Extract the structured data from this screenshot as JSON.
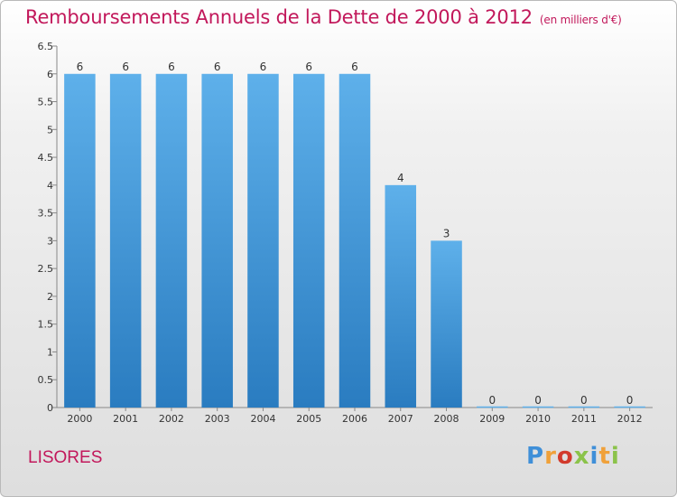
{
  "header": {
    "title": "Remboursements Annuels de la Dette de 2000 à 2012",
    "subtitle": "(en milliers d'€)"
  },
  "footer": {
    "commune": "LISORES",
    "logo_text": "Proxiti"
  },
  "colors": {
    "title": "#c2185b",
    "bar_top": "#5eb0ea",
    "bar_bottom": "#2a7cc0",
    "logo_letters": [
      "#3f8fd8",
      "#f0a13a",
      "#d23a2c",
      "#8bc34a",
      "#3f8fd8",
      "#f0a13a",
      "#8bc34a"
    ]
  },
  "chart_data": {
    "type": "bar",
    "title": "Remboursements Annuels de la Dette de 2000 à 2012",
    "subtitle": "(en milliers d'€)",
    "xlabel": "",
    "ylabel": "",
    "categories": [
      "2000",
      "2001",
      "2002",
      "2003",
      "2004",
      "2005",
      "2006",
      "2007",
      "2008",
      "2009",
      "2010",
      "2011",
      "2012"
    ],
    "values": [
      6,
      6,
      6,
      6,
      6,
      6,
      6,
      4,
      3,
      0,
      0,
      0,
      0
    ],
    "data_labels": [
      "6",
      "6",
      "6",
      "6",
      "6",
      "6",
      "6",
      "4",
      "3",
      "0",
      "0",
      "0",
      "0"
    ],
    "ylim": [
      0,
      6.5
    ],
    "yticks": [
      0,
      0.5,
      1,
      1.5,
      2,
      2.5,
      3,
      3.5,
      4,
      4.5,
      5,
      5.5,
      6,
      6.5
    ],
    "ytick_labels": [
      "0",
      "0.5",
      "1",
      "1.5",
      "2",
      "2.5",
      "3",
      "3.5",
      "4",
      "4.5",
      "5",
      "5.5",
      "6",
      "6.5"
    ],
    "grid": false
  }
}
